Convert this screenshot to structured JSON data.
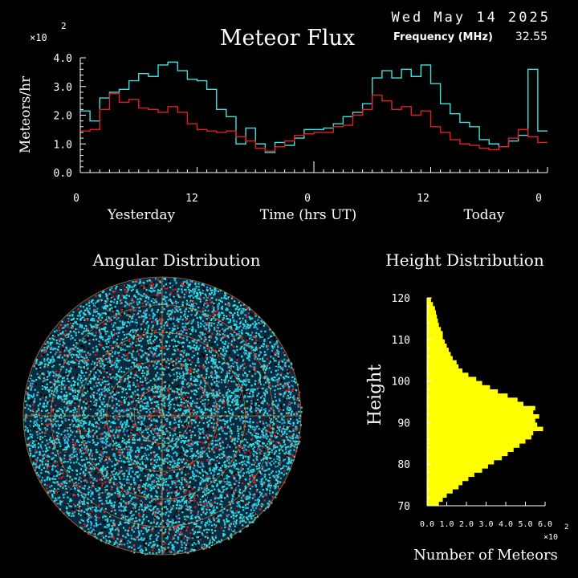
{
  "header": {
    "date": "Wed May 14 2025",
    "title": "Meteor Flux",
    "frequency_label": "Frequency (MHz)",
    "frequency_value": "32.55",
    "multiplier": "×10",
    "exponent": "2"
  },
  "chart_data": [
    {
      "type": "line",
      "title": "Meteor Flux",
      "ylabel": "Meteors/hr",
      "xlabel": "Time (hrs UT)",
      "ylim": [
        0,
        4.0
      ],
      "y_scale_note": "×10^2",
      "y_ticks": [
        "0.0",
        "1.0",
        "2.0",
        "3.0",
        "4.0"
      ],
      "x_ticks": [
        "0",
        "12",
        "0",
        "12",
        "0"
      ],
      "x_groups": [
        "Yesterday",
        "Today"
      ],
      "x_hours": [
        0,
        1,
        2,
        3,
        4,
        5,
        6,
        7,
        8,
        9,
        10,
        11,
        12,
        13,
        14,
        15,
        16,
        17,
        18,
        19,
        20,
        21,
        22,
        23,
        24,
        25,
        26,
        27,
        28,
        29,
        30,
        31,
        32,
        33,
        34,
        35,
        36,
        37,
        38,
        39,
        40,
        41,
        42,
        43,
        44,
        45,
        46,
        47
      ],
      "series": [
        {
          "color": "#40e0e0",
          "values": [
            2.15,
            1.8,
            2.6,
            2.8,
            2.9,
            3.2,
            3.45,
            3.35,
            3.75,
            3.85,
            3.55,
            3.25,
            3.2,
            2.9,
            2.2,
            1.95,
            1.0,
            1.55,
            1.0,
            0.7,
            1.05,
            0.95,
            1.2,
            1.5,
            1.5,
            1.55,
            1.7,
            1.95,
            2.1,
            2.4,
            3.3,
            3.55,
            3.3,
            3.6,
            3.35,
            3.75,
            3.1,
            2.4,
            2.05,
            1.75,
            1.6,
            1.15,
            1.0,
            0.9,
            1.1,
            1.3,
            3.6,
            1.45
          ]
        },
        {
          "color": "#e02020",
          "values": [
            1.45,
            1.5,
            2.2,
            2.75,
            2.45,
            2.55,
            2.25,
            2.2,
            2.1,
            2.3,
            2.1,
            1.7,
            1.5,
            1.45,
            1.4,
            1.45,
            1.25,
            1.1,
            0.85,
            0.75,
            0.9,
            1.1,
            1.3,
            1.35,
            1.4,
            1.4,
            1.6,
            1.65,
            2.0,
            2.2,
            2.7,
            2.5,
            2.2,
            2.3,
            2.0,
            2.15,
            1.6,
            1.4,
            1.15,
            1.0,
            0.95,
            0.85,
            0.8,
            0.9,
            1.2,
            1.5,
            1.25,
            1.05
          ]
        }
      ]
    },
    {
      "type": "scatter",
      "title": "Angular Distribution"
    },
    {
      "type": "bar",
      "title": "Height Distribution",
      "ylabel": "Height",
      "xlabel": "Number of Meteors",
      "x_scale_note": "×10^2",
      "ylim": [
        70,
        120
      ],
      "xlim": [
        0,
        6.0
      ],
      "y_ticks": [
        "70",
        "80",
        "90",
        "100",
        "110",
        "120"
      ],
      "x_ticks": [
        "0.0",
        "1.0",
        "2.0",
        "3.0",
        "4.0",
        "5.0",
        "6.0"
      ],
      "color": "#ffff00",
      "heights": [
        70,
        71,
        72,
        73,
        74,
        75,
        76,
        77,
        78,
        79,
        80,
        81,
        82,
        83,
        84,
        85,
        86,
        87,
        88,
        89,
        90,
        91,
        92,
        93,
        94,
        95,
        96,
        97,
        98,
        99,
        100,
        101,
        102,
        103,
        104,
        105,
        106,
        107,
        108,
        109,
        110,
        111,
        112,
        113,
        114,
        115,
        116,
        117,
        118,
        119
      ],
      "counts": [
        0.6,
        0.8,
        1.0,
        1.3,
        1.6,
        1.8,
        2.1,
        2.4,
        2.8,
        3.1,
        3.4,
        3.8,
        4.1,
        4.4,
        4.7,
        5.0,
        5.3,
        5.4,
        5.9,
        5.6,
        5.5,
        5.7,
        5.4,
        5.5,
        4.9,
        4.6,
        4.1,
        3.6,
        3.2,
        2.8,
        2.5,
        2.1,
        1.8,
        1.6,
        1.5,
        1.3,
        1.2,
        1.1,
        1.0,
        0.9,
        0.8,
        0.8,
        0.7,
        0.6,
        0.55,
        0.5,
        0.45,
        0.4,
        0.3,
        0.2
      ]
    }
  ]
}
